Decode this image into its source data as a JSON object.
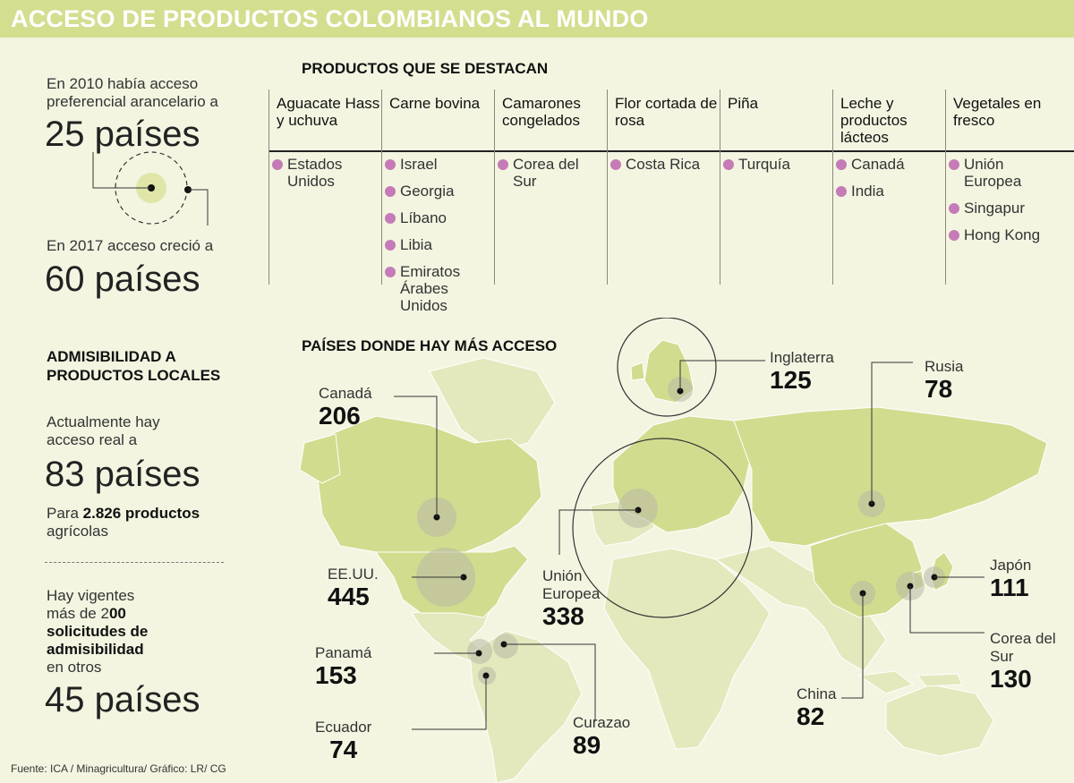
{
  "title": "ACCESO DE PRODUCTOS COLOMBIANOS AL MUNDO",
  "left": {
    "s2010_text": "En 2010 había acceso preferencial arancelario a",
    "s2010_num": "25 países",
    "s2017_text": "En 2017 acceso creció a",
    "s2017_num": "60 países",
    "admis_title": "ADMISIBILIDAD A PRODUCTOS LOCALES",
    "actual_text": "Actualmente hay acceso real a",
    "actual_num": "83 países",
    "para": "Para",
    "para_bold": "2.826 productos",
    "para_rest": "agrícolas",
    "vig_1": "Hay vigentes",
    "vig_2": "más de 2",
    "vig_2b": "00",
    "vig_3": "solicitudes de",
    "vig_4": "admisibilidad",
    "vig_5": "en otros",
    "vig_num": "45 países"
  },
  "products": {
    "title": "PRODUCTOS QUE SE DESTACAN",
    "columns": [
      {
        "name": "Aguacate Hass y uchuva",
        "countries": [
          "Estados Unidos"
        ]
      },
      {
        "name": "Carne bovina",
        "countries": [
          "Israel",
          "Georgia",
          "Líbano",
          "Libia",
          "Emiratos Árabes Unidos"
        ]
      },
      {
        "name": "Camarones congelados",
        "countries": [
          "Corea del Sur"
        ]
      },
      {
        "name": "Flor cortada de rosa",
        "countries": [
          "Costa Rica"
        ]
      },
      {
        "name": "Piña",
        "countries": [
          "Turquía"
        ]
      },
      {
        "name": "Leche y productos lácteos",
        "countries": [
          "Canadá",
          "India"
        ]
      },
      {
        "name": "Vegetales en fresco",
        "countries": [
          "Unión Europea",
          "Singapur",
          "Hong Kong"
        ]
      }
    ],
    "dot_color": "#c57bb8"
  },
  "map": {
    "title": "PAÍSES DONDE HAY MÁS ACCESO",
    "land_highlight": "#d2dc8e",
    "land_other": "#e4e9bd",
    "countries": [
      {
        "name": "Canadá",
        "value": "206"
      },
      {
        "name": "EE.UU.",
        "value": "445"
      },
      {
        "name": "Panamá",
        "value": "153"
      },
      {
        "name": "Ecuador",
        "value": "74"
      },
      {
        "name": "Curazao",
        "value": "89"
      },
      {
        "name": "Unión Europea",
        "value": "338"
      },
      {
        "name": "Inglaterra",
        "value": "125"
      },
      {
        "name": "Rusia",
        "value": "78"
      },
      {
        "name": "China",
        "value": "82"
      },
      {
        "name": "Japón",
        "value": "111"
      },
      {
        "name": "Corea del Sur",
        "value": "130"
      }
    ]
  },
  "source": "Fuente: ICA / Minagricultura/ Gráfico: LR/ CG"
}
